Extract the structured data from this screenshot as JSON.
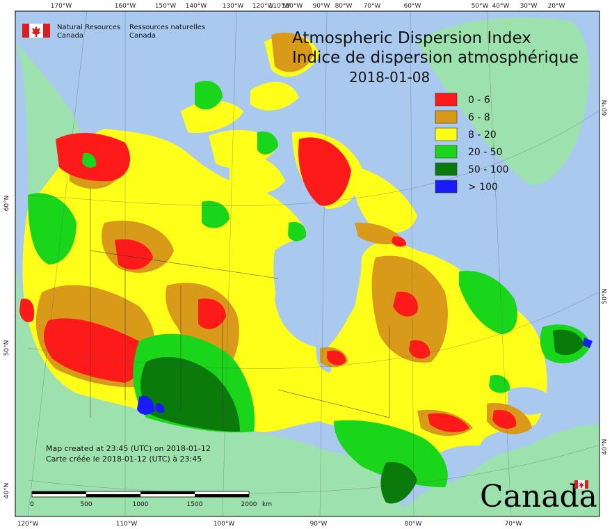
{
  "map": {
    "title_en": "Atmospheric Dispersion Index",
    "title_fr": "Indice de dispersion atmosphérique",
    "date": "2018-01-08",
    "agency_en": [
      "Natural Resources",
      "Canada"
    ],
    "agency_fr": [
      "Ressources naturelles",
      "Canada"
    ],
    "wordmark": "Canada",
    "credit_en": "Map created at 23:45 (UTC) on 2018-01-12",
    "credit_fr": "Carte créée le 2018-01-12 (UTC) à 23:45",
    "legend": [
      {
        "label": "0 - 6",
        "color": "#ff1a1a"
      },
      {
        "label": "6 - 8",
        "color": "#d99a1a"
      },
      {
        "label": "8 - 20",
        "color": "#ffff1a"
      },
      {
        "label": "20 - 50",
        "color": "#1ad61a"
      },
      {
        "label": "50 - 100",
        "color": "#0a7a0a"
      },
      {
        "label": "> 100",
        "color": "#1a1aff"
      }
    ],
    "top_ticks": [
      "170°W",
      "160°W",
      "150°W",
      "140°W",
      "130°W",
      "120°W",
      "110°W",
      "100°W",
      "90°W",
      "80°W",
      "70°W",
      "60°W",
      "50°W",
      "40°W",
      "30°W",
      "20°W"
    ],
    "bottom_ticks": [
      "120°W",
      "110°W",
      "100°W",
      "90°W",
      "80°W",
      "70°W"
    ],
    "left_ticks": [
      "60°N",
      "50°N",
      "40°N"
    ],
    "right_ticks": [
      "60°N",
      "50°N",
      "40°N"
    ],
    "scale": {
      "labels": [
        "0",
        "500",
        "1000",
        "1500",
        "2000"
      ],
      "unit": "km"
    },
    "colors": {
      "ocean": "#a9c9ef",
      "land": "#9de2ae"
    }
  }
}
